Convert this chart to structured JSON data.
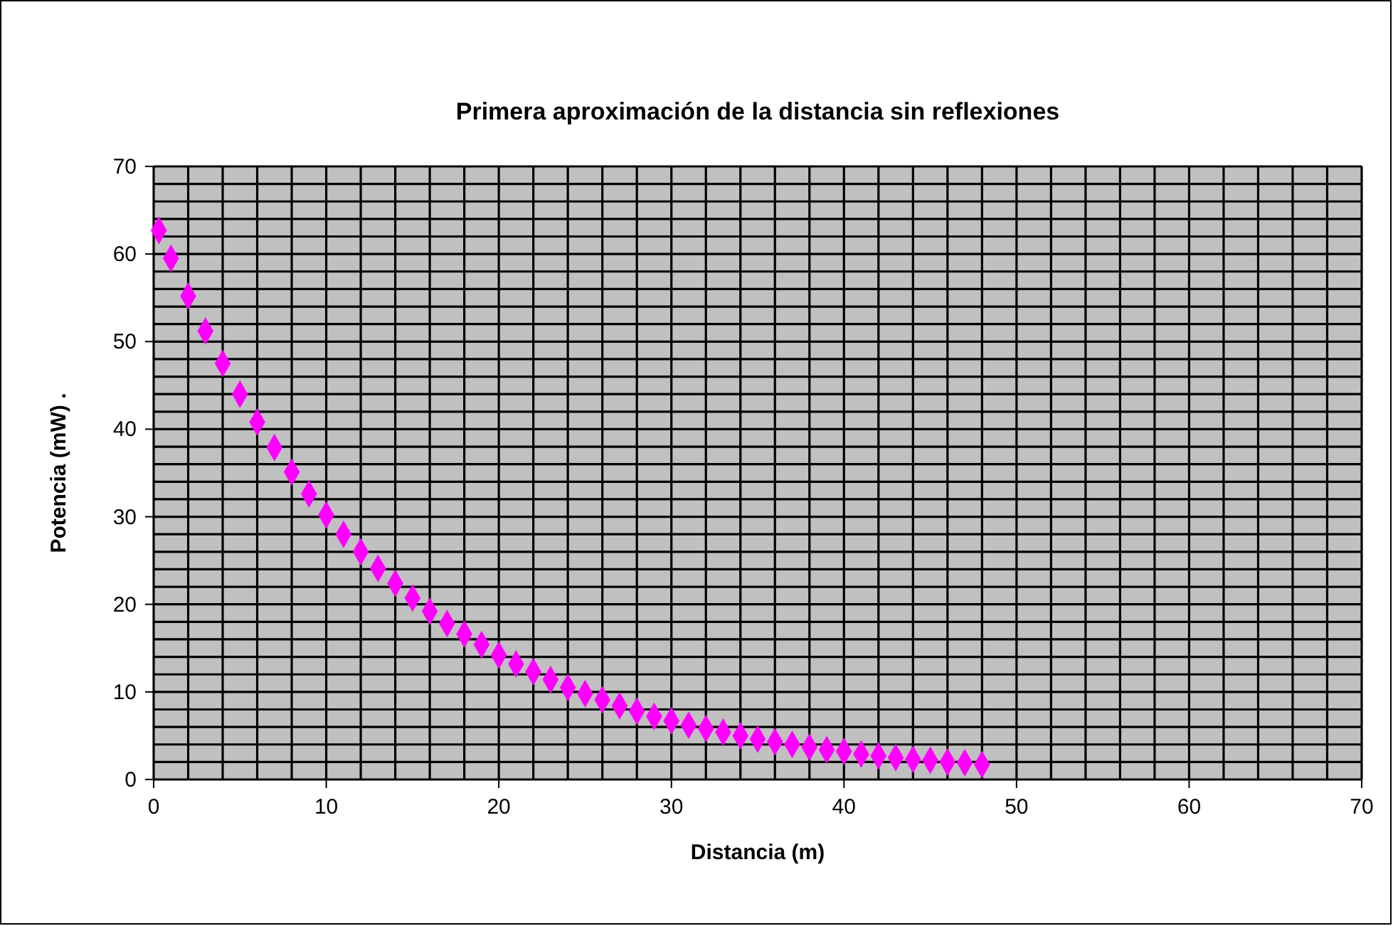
{
  "chart_data": {
    "type": "scatter",
    "title": "Primera aproximación de la distancia sin reflexiones",
    "xlabel": "Distancia (m)",
    "ylabel": "Potencia (mW)  .",
    "x": [
      0.3,
      1,
      2,
      3,
      4,
      5,
      6,
      7,
      8,
      9,
      10,
      11,
      12,
      13,
      14,
      15,
      16,
      17,
      18,
      19,
      20,
      21,
      22,
      23,
      24,
      25,
      26,
      27,
      28,
      29,
      30,
      31,
      32,
      33,
      34,
      35,
      36,
      37,
      38,
      39,
      40,
      41,
      42,
      43,
      44,
      45,
      46,
      47,
      48
    ],
    "series": [
      {
        "color": "#ff00ff",
        "values": [
          62.7,
          59.5,
          55.2,
          51.2,
          47.5,
          44.0,
          40.8,
          37.9,
          35.1,
          32.6,
          30.2,
          28.0,
          26.0,
          24.1,
          22.4,
          20.7,
          19.2,
          17.8,
          16.6,
          15.4,
          14.2,
          13.2,
          12.3,
          11.4,
          10.5,
          9.8,
          9.1,
          8.4,
          7.8,
          7.2,
          6.7,
          6.2,
          5.8,
          5.4,
          5.0,
          4.6,
          4.3,
          4.0,
          3.7,
          3.4,
          3.2,
          2.9,
          2.7,
          2.5,
          2.3,
          2.2,
          2.0,
          1.9,
          1.7
        ]
      }
    ],
    "marker": "diamond",
    "xlim": [
      0,
      70
    ],
    "ylim": [
      0,
      70
    ],
    "xticks": [
      0,
      {
        "value": 2,
        "label": null
      },
      {
        "value": 4,
        "label": null
      },
      {
        "value": 6,
        "label": null
      },
      {
        "value": 8,
        "label": null
      },
      10,
      {
        "value": 12,
        "label": null
      },
      {
        "value": 14,
        "label": null
      },
      {
        "value": 16,
        "label": null
      },
      {
        "value": 18,
        "label": null
      },
      20,
      {
        "value": 22,
        "label": null
      },
      {
        "value": 24,
        "label": null
      },
      {
        "value": 26,
        "label": null
      },
      {
        "value": 28,
        "label": null
      },
      30,
      {
        "value": 32,
        "label": null
      },
      {
        "value": 34,
        "label": null
      },
      {
        "value": 36,
        "label": null
      },
      {
        "value": 38,
        "label": null
      },
      40,
      {
        "value": 42,
        "label": null
      },
      {
        "value": 44,
        "label": null
      },
      {
        "value": 46,
        "label": null
      },
      {
        "value": 48,
        "label": null
      },
      50,
      {
        "value": 52,
        "label": null
      },
      {
        "value": 54,
        "label": null
      },
      {
        "value": 56,
        "label": null
      },
      {
        "value": 58,
        "label": null
      },
      60,
      {
        "value": 62,
        "label": null
      },
      {
        "value": 64,
        "label": null
      },
      {
        "value": 66,
        "label": null
      },
      {
        "value": 68,
        "label": null
      },
      70
    ],
    "yticks": [
      0,
      {
        "value": 2,
        "label": null
      },
      {
        "value": 4,
        "label": null
      },
      {
        "value": 6,
        "label": null
      },
      {
        "value": 8,
        "label": null
      },
      10,
      {
        "value": 12,
        "label": null
      },
      {
        "value": 14,
        "label": null
      },
      {
        "value": 16,
        "label": null
      },
      {
        "value": 18,
        "label": null
      },
      20,
      {
        "value": 22,
        "label": null
      },
      {
        "value": 24,
        "label": null
      },
      {
        "value": 26,
        "label": null
      },
      {
        "value": 28,
        "label": null
      },
      30,
      {
        "value": 32,
        "label": null
      },
      {
        "value": 34,
        "label": null
      },
      {
        "value": 36,
        "label": null
      },
      {
        "value": 38,
        "label": null
      },
      40,
      {
        "value": 42,
        "label": null
      },
      {
        "value": 44,
        "label": null
      },
      {
        "value": 46,
        "label": null
      },
      {
        "value": 48,
        "label": null
      },
      50,
      {
        "value": 52,
        "label": null
      },
      {
        "value": 54,
        "label": null
      },
      {
        "value": 56,
        "label": null
      },
      {
        "value": 58,
        "label": null
      },
      60,
      {
        "value": 62,
        "label": null
      },
      {
        "value": 64,
        "label": null
      },
      {
        "value": 66,
        "label": null
      },
      {
        "value": 68,
        "label": null
      },
      70
    ],
    "grid": true
  }
}
